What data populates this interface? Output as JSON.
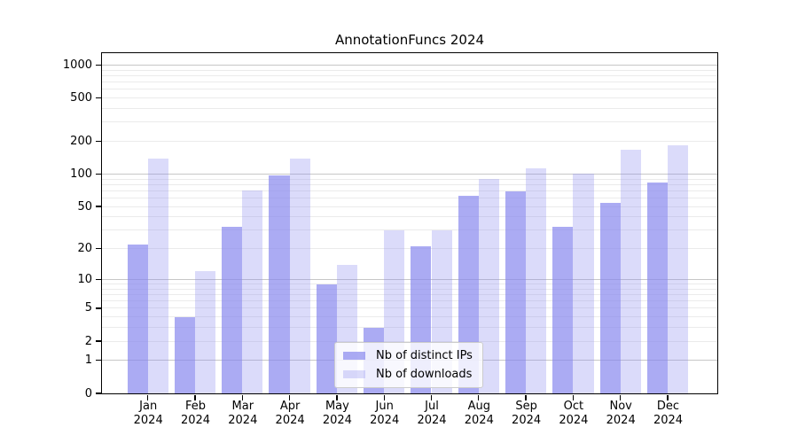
{
  "title": "AnnotationFuncs 2024",
  "chart_data": {
    "type": "bar",
    "title": "AnnotationFuncs 2024",
    "x_months": [
      "Jan",
      "Feb",
      "Mar",
      "Apr",
      "May",
      "Jun",
      "Jul",
      "Aug",
      "Sep",
      "Oct",
      "Nov",
      "Dec"
    ],
    "x_year": "2024",
    "series": [
      {
        "name": "Nb of distinct IPs",
        "color": "rgba(136,136,238,0.7)",
        "values": [
          22,
          4,
          32,
          97,
          9,
          3,
          21,
          63,
          69,
          32,
          54,
          84
        ]
      },
      {
        "name": "Nb of downloads",
        "color": "rgba(136,136,238,0.3)",
        "values": [
          140,
          12,
          70,
          138,
          14,
          30,
          30,
          90,
          113,
          100,
          167,
          183
        ]
      }
    ],
    "yscale": "log10(1+v)",
    "ytick_values": [
      0,
      1,
      2,
      5,
      10,
      20,
      50,
      100,
      200,
      500,
      1000
    ],
    "ylim": [
      0,
      1285
    ],
    "grid": {
      "major": [
        1,
        10,
        100,
        1000
      ],
      "minor": [
        2,
        3,
        4,
        5,
        6,
        7,
        8,
        9,
        20,
        30,
        40,
        50,
        60,
        70,
        80,
        90,
        200,
        300,
        400,
        500,
        600,
        700,
        800,
        900
      ]
    },
    "legend_position": "lower center",
    "legend_labels": [
      "Nb of distinct IPs",
      "Nb of downloads"
    ]
  }
}
